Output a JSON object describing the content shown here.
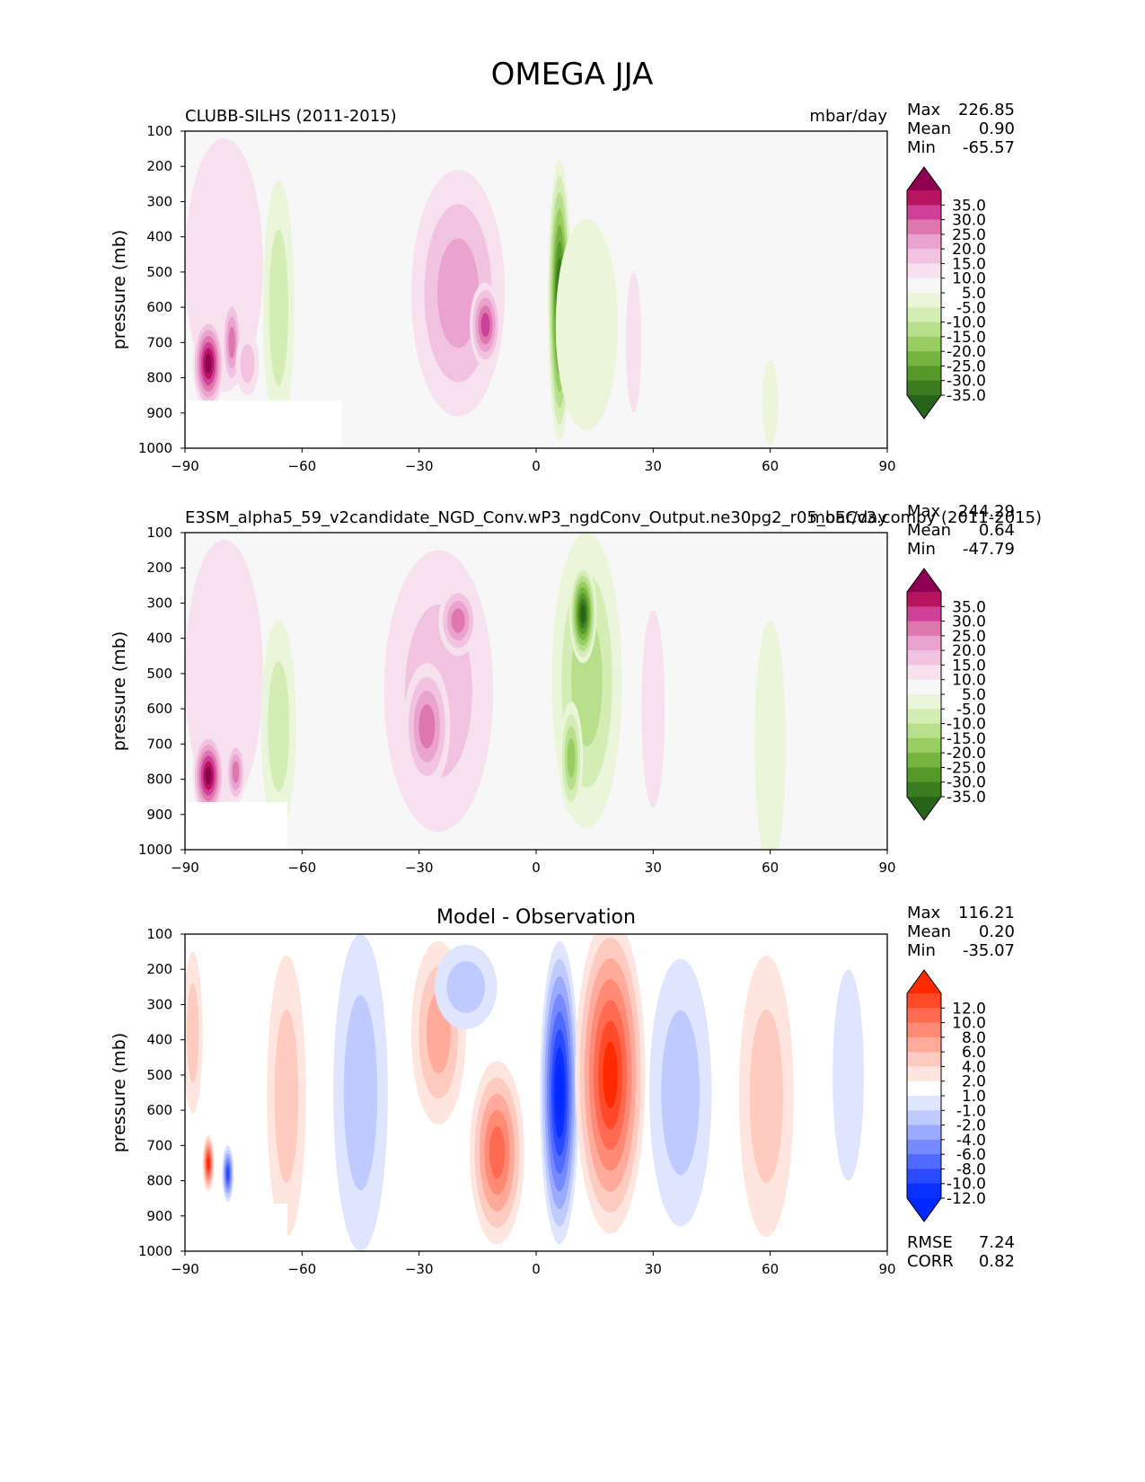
{
  "figure": {
    "title": "OMEGA JJA"
  },
  "chart_data": [
    {
      "type": "heatmap",
      "id": "test",
      "title_left": "CLUBB-SILHS (2011-2015)",
      "title_right": "mbar/day",
      "ylabel": "pressure (mb)",
      "xlim": [
        -90,
        90
      ],
      "ylim": [
        1000,
        100
      ],
      "xticks": [
        -90,
        -60,
        -30,
        0,
        30,
        60,
        90
      ],
      "xtick_labels": [
        "−90",
        "−60",
        "−30",
        "0",
        "30",
        "60",
        "90"
      ],
      "yticks": [
        100,
        200,
        300,
        400,
        500,
        600,
        700,
        800,
        900,
        1000
      ],
      "ytick_labels": [
        "100",
        "200",
        "300",
        "400",
        "500",
        "600",
        "700",
        "800",
        "900",
        "1000"
      ],
      "stats": {
        "max_label": "Max",
        "max": "226.85",
        "mean_label": "Mean",
        "mean": "0.90",
        "min_label": "Min",
        "min": "-65.57"
      },
      "colorbar": {
        "labels": [
          "35.0",
          "30.0",
          "25.0",
          "20.0",
          "15.0",
          "10.0",
          "5.0",
          "-5.0",
          "-10.0",
          "-15.0",
          "-20.0",
          "-25.0",
          "-30.0",
          "-35.0"
        ],
        "colors": [
          "#8e0152",
          "#b7135f",
          "#d0409a",
          "#de77ae",
          "#eaa3cf",
          "#f2c3e0",
          "#f8e1ee",
          "#f7f7f7",
          "#eaf5da",
          "#d3edb5",
          "#b8e08c",
          "#98cd62",
          "#77b33f",
          "#55992b",
          "#3b7d1e",
          "#276419"
        ]
      },
      "features": [
        {
          "cx": -80,
          "cy": 480,
          "rx": 10,
          "ry": 360,
          "v": 7
        },
        {
          "cx": -84,
          "cy": 760,
          "rx": 4,
          "ry": 130,
          "v": 38
        },
        {
          "cx": -78,
          "cy": 700,
          "rx": 2.5,
          "ry": 130,
          "v": 22
        },
        {
          "cx": -74,
          "cy": 760,
          "rx": 3,
          "ry": 90,
          "v": 12
        },
        {
          "cx": -66,
          "cy": 600,
          "rx": 4,
          "ry": 360,
          "v": -13
        },
        {
          "cx": -44,
          "cy": 700,
          "rx": 10,
          "ry": 500,
          "v": -5
        },
        {
          "cx": -20,
          "cy": 560,
          "rx": 12,
          "ry": 350,
          "v": 18
        },
        {
          "cx": -13,
          "cy": 650,
          "rx": 4,
          "ry": 120,
          "v": 28
        },
        {
          "cx": 6,
          "cy": 580,
          "rx": 3,
          "ry": 400,
          "v": -38
        },
        {
          "cx": 13,
          "cy": 650,
          "rx": 8,
          "ry": 300,
          "v": -6
        },
        {
          "cx": 25,
          "cy": 700,
          "rx": 2,
          "ry": 200,
          "v": 6
        },
        {
          "cx": 60,
          "cy": 870,
          "rx": 2,
          "ry": 120,
          "v": -6
        }
      ]
    },
    {
      "type": "heatmap",
      "id": "reference",
      "title_left": "E3SM_alpha5_59_v2candidate_NGD_Conv.wP3_ngdConv_Output.ne30pg2_r05_oECv3.compy (2011-2015)",
      "title_right": "mbar/day",
      "ylabel": "pressure (mb)",
      "xlim": [
        -90,
        90
      ],
      "ylim": [
        1000,
        100
      ],
      "xticks": [
        -90,
        -60,
        -30,
        0,
        30,
        60,
        90
      ],
      "xtick_labels": [
        "−90",
        "−60",
        "−30",
        "0",
        "30",
        "60",
        "90"
      ],
      "yticks": [
        100,
        200,
        300,
        400,
        500,
        600,
        700,
        800,
        900,
        1000
      ],
      "ytick_labels": [
        "100",
        "200",
        "300",
        "400",
        "500",
        "600",
        "700",
        "800",
        "900",
        "1000"
      ],
      "stats": {
        "max_label": "Max",
        "max": "244.29",
        "mean_label": "Mean",
        "mean": "0.64",
        "min_label": "Min",
        "min": "-47.79"
      },
      "colorbar": {
        "labels": [
          "35.0",
          "30.0",
          "25.0",
          "20.0",
          "15.0",
          "10.0",
          "5.0",
          "-5.0",
          "-10.0",
          "-15.0",
          "-20.0",
          "-25.0",
          "-30.0",
          "-35.0"
        ],
        "colors": [
          "#8e0152",
          "#b7135f",
          "#d0409a",
          "#de77ae",
          "#eaa3cf",
          "#f2c3e0",
          "#f8e1ee",
          "#f7f7f7",
          "#eaf5da",
          "#d3edb5",
          "#b8e08c",
          "#98cd62",
          "#77b33f",
          "#55992b",
          "#3b7d1e",
          "#276419"
        ]
      },
      "features": [
        {
          "cx": -80,
          "cy": 500,
          "rx": 10,
          "ry": 380,
          "v": 8
        },
        {
          "cx": -84,
          "cy": 790,
          "rx": 4,
          "ry": 120,
          "v": 38
        },
        {
          "cx": -77,
          "cy": 780,
          "rx": 2.5,
          "ry": 90,
          "v": 20
        },
        {
          "cx": -66,
          "cy": 650,
          "rx": 4.5,
          "ry": 300,
          "v": -14
        },
        {
          "cx": -25,
          "cy": 550,
          "rx": 14,
          "ry": 400,
          "v": 12
        },
        {
          "cx": -20,
          "cy": 350,
          "rx": 5,
          "ry": 100,
          "v": 22
        },
        {
          "cx": -28,
          "cy": 650,
          "rx": 6,
          "ry": 180,
          "v": 22
        },
        {
          "cx": 13,
          "cy": 520,
          "rx": 9,
          "ry": 420,
          "v": -18
        },
        {
          "cx": 12,
          "cy": 330,
          "rx": 3.5,
          "ry": 140,
          "v": -36
        },
        {
          "cx": 9,
          "cy": 740,
          "rx": 3,
          "ry": 160,
          "v": -24
        },
        {
          "cx": 30,
          "cy": 600,
          "rx": 3,
          "ry": 280,
          "v": 6
        },
        {
          "cx": 60,
          "cy": 700,
          "rx": 4,
          "ry": 350,
          "v": -6
        }
      ]
    },
    {
      "type": "heatmap",
      "id": "diff",
      "title_center": "Model - Observation",
      "ylabel": "pressure (mb)",
      "xlim": [
        -90,
        90
      ],
      "ylim": [
        1000,
        100
      ],
      "xticks": [
        -90,
        -60,
        -30,
        0,
        30,
        60,
        90
      ],
      "xtick_labels": [
        "−90",
        "−60",
        "−30",
        "0",
        "30",
        "60",
        "90"
      ],
      "yticks": [
        100,
        200,
        300,
        400,
        500,
        600,
        700,
        800,
        900,
        1000
      ],
      "ytick_labels": [
        "100",
        "200",
        "300",
        "400",
        "500",
        "600",
        "700",
        "800",
        "900",
        "1000"
      ],
      "stats": {
        "max_label": "Max",
        "max": "116.21",
        "mean_label": "Mean",
        "mean": "0.20",
        "min_label": "Min",
        "min": "-35.07"
      },
      "metrics": {
        "rmse_label": "RMSE",
        "rmse": "7.24",
        "corr_label": "CORR",
        "corr": "0.82"
      },
      "colorbar": {
        "labels": [
          "12.0",
          "10.0",
          "8.0",
          "6.0",
          "4.0",
          "2.0",
          "1.0",
          "-1.0",
          "-2.0",
          "-4.0",
          "-6.0",
          "-8.0",
          "-10.0",
          "-12.0"
        ],
        "colors": [
          "#ff2a00",
          "#ff4a2a",
          "#ff6a50",
          "#ff8a75",
          "#ffaa9a",
          "#ffcabf",
          "#ffe5df",
          "#ffffff",
          "#dfe5ff",
          "#bfcaff",
          "#9aaaff",
          "#758aff",
          "#506aff",
          "#2a4aff",
          "#0a30ff",
          "#0028ff"
        ]
      },
      "features": [
        {
          "cx": -88,
          "cy": 380,
          "rx": 2.5,
          "ry": 230,
          "v": 3
        },
        {
          "cx": -64,
          "cy": 560,
          "rx": 5,
          "ry": 400,
          "v": 3
        },
        {
          "cx": -45,
          "cy": 550,
          "rx": 7,
          "ry": 450,
          "v": -4
        },
        {
          "cx": -25,
          "cy": 380,
          "rx": 7,
          "ry": 260,
          "v": 5
        },
        {
          "cx": -10,
          "cy": 720,
          "rx": 7,
          "ry": 260,
          "v": 8
        },
        {
          "cx": -18,
          "cy": 250,
          "rx": 8,
          "ry": 120,
          "v": -4
        },
        {
          "cx": 6,
          "cy": 550,
          "rx": 5,
          "ry": 430,
          "v": -15
        },
        {
          "cx": 19,
          "cy": 500,
          "rx": 9,
          "ry": 450,
          "v": 15
        },
        {
          "cx": 37,
          "cy": 550,
          "rx": 8,
          "ry": 380,
          "v": -4
        },
        {
          "cx": 59,
          "cy": 560,
          "rx": 7,
          "ry": 400,
          "v": 3
        },
        {
          "cx": -84,
          "cy": 750,
          "rx": 1.5,
          "ry": 80,
          "v": 12
        },
        {
          "cx": -79,
          "cy": 780,
          "rx": 1.5,
          "ry": 80,
          "v": -12
        },
        {
          "cx": 80,
          "cy": 500,
          "rx": 4,
          "ry": 300,
          "v": -2
        }
      ]
    }
  ]
}
